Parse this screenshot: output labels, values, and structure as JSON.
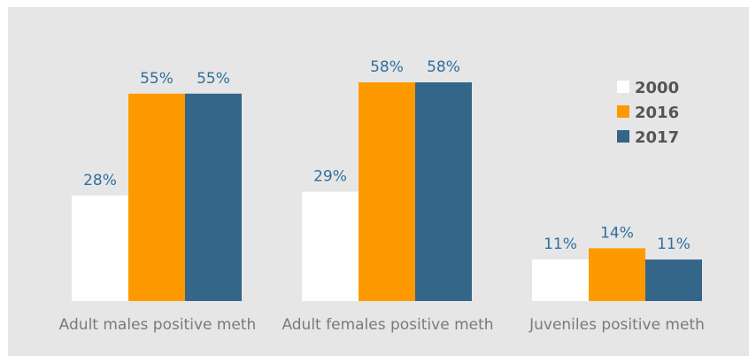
{
  "chart_data": {
    "type": "bar",
    "categories": [
      "Adult males positive meth",
      "Adult females positive meth",
      "Juveniles positive meth"
    ],
    "series": [
      {
        "name": "2000",
        "values": [
          28,
          29,
          11
        ],
        "labels": [
          "28%",
          "29%",
          "11%"
        ],
        "color": "#ffffff"
      },
      {
        "name": "2016",
        "values": [
          55,
          58,
          14
        ],
        "labels": [
          "55%",
          "58%",
          "14%"
        ],
        "color": "#ff9900"
      },
      {
        "name": "2017",
        "values": [
          55,
          58,
          11
        ],
        "labels": [
          "55%",
          "58%",
          "11%"
        ],
        "color": "#336688"
      }
    ],
    "ylim": [
      0,
      58
    ],
    "grid": false,
    "legend_position": "top-right"
  }
}
